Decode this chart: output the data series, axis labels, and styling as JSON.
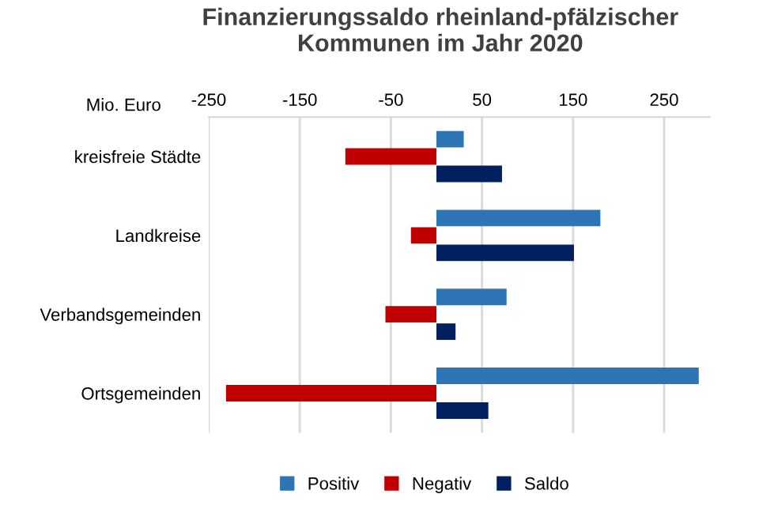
{
  "chart_data": {
    "type": "bar",
    "orientation": "horizontal",
    "title": "Finanzierungssaldo rheinland-pfälzischer\nKommunen im Jahr 2020",
    "xlabel": "Mio. Euro",
    "categories": [
      "kreisfreie Städte",
      "Landkreise",
      "Verbandsgemeinden",
      "Ortsgemeinden"
    ],
    "series": [
      {
        "name": "Positiv",
        "color": "#2e75b6",
        "values": [
          30,
          180,
          77,
          288
        ]
      },
      {
        "name": "Negativ",
        "color": "#c00000",
        "values": [
          -100,
          -28,
          -56,
          -231
        ]
      },
      {
        "name": "Saldo",
        "color": "#002060",
        "values": [
          72,
          151,
          21,
          57
        ]
      }
    ],
    "xlim": [
      -250,
      300
    ],
    "xticks": [
      -250,
      -150,
      -50,
      50,
      150,
      250
    ],
    "grid": "x",
    "legend": "bottom"
  }
}
